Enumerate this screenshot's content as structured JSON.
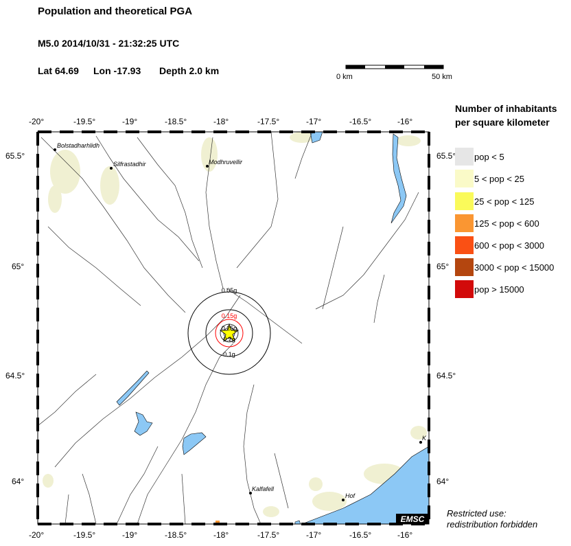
{
  "header": {
    "title": "Population and theoretical PGA",
    "event": "M5.0  2014/10/31 - 21:32:25 UTC",
    "lat": "Lat 64.69",
    "lon": "Lon -17.93",
    "depth": "Depth  2.0 km"
  },
  "scale_bar": {
    "start_label": "0 km",
    "end_label": "50 km"
  },
  "axes": {
    "lon_ticks": [
      "-20°",
      "-19.5°",
      "-19°",
      "-18.5°",
      "-18°",
      "-17.5°",
      "-17°",
      "-16.5°",
      "-16°"
    ],
    "lat_ticks": [
      "65.5°",
      "65°",
      "64.5°",
      "64°"
    ]
  },
  "places": [
    {
      "name": "Bolstadharhlidh"
    },
    {
      "name": "Silfrastadhir"
    },
    {
      "name": "Modhruvellir"
    },
    {
      "name": "Kalfafell"
    },
    {
      "name": "Hof"
    },
    {
      "name": "K"
    }
  ],
  "pga_contours": [
    {
      "label": "0.05g",
      "color": "#000000"
    },
    {
      "label": "0.1g",
      "color": "#000000"
    },
    {
      "label": "0.15g",
      "color": "#ff0000"
    },
    {
      "label": "0.2g",
      "color": "#000000"
    },
    {
      "label": "0.25g",
      "color": "#000000"
    }
  ],
  "legend": {
    "title": "Number of inhabitants per square kilometer",
    "items": [
      {
        "label": "pop < 5",
        "color": "#e6e6e6"
      },
      {
        "label": "5 < pop < 25",
        "color": "#fafac8"
      },
      {
        "label": "25 < pop < 125",
        "color": "#fafa5a"
      },
      {
        "label": "125 < pop < 600",
        "color": "#fa9632"
      },
      {
        "label": "600 < pop < 3000",
        "color": "#fa5014"
      },
      {
        "label": "3000 < pop < 15000",
        "color": "#b4460f"
      },
      {
        "label": "pop > 15000",
        "color": "#d20a0a"
      }
    ]
  },
  "badge": "EMSC",
  "note": {
    "line1": "Restricted use:",
    "line2": "redistribution forbidden"
  },
  "colors": {
    "water": "#8cc8f5",
    "population_low": "#f0f0d2",
    "epicenter": "#ffff00"
  }
}
